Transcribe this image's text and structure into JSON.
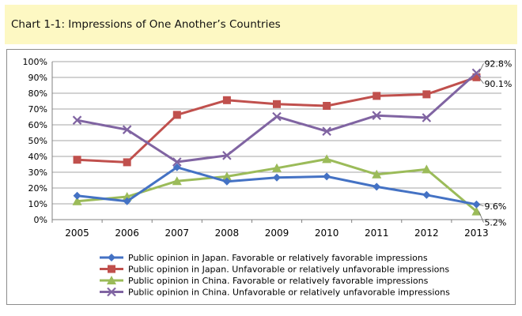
{
  "header": {
    "title": "Chart 1-1: Impressions of One Another’s Countries"
  },
  "chart_data": {
    "type": "line",
    "x": [
      "2005",
      "2006",
      "2007",
      "2008",
      "2009",
      "2010",
      "2011",
      "2012",
      "2013"
    ],
    "ylim": [
      0,
      100
    ],
    "yticks": [
      "0%",
      "10%",
      "20%",
      "30%",
      "40%",
      "50%",
      "60%",
      "70%",
      "80%",
      "90%",
      "100%"
    ],
    "grid": true,
    "legend_position": "bottom",
    "series": [
      {
        "name": "Public opinion in Japan. Favorable or relatively favorable impressions",
        "color": "#4472c4",
        "marker": "diamond",
        "values": [
          15.1,
          11.6,
          33.1,
          24.1,
          26.6,
          27.3,
          20.8,
          15.6,
          9.6
        ]
      },
      {
        "name": "Public opinion in Japan. Unfavorable or relatively unfavorable impressions",
        "color": "#c0504d",
        "marker": "square",
        "values": [
          37.9,
          36.3,
          66.3,
          75.6,
          73.1,
          72.0,
          78.3,
          79.3,
          90.1
        ]
      },
      {
        "name": "Public opinion in China. Favorable or relatively favorable impressions",
        "color": "#9bbb59",
        "marker": "triangle",
        "values": [
          11.6,
          14.5,
          24.4,
          27.3,
          32.6,
          38.3,
          28.6,
          31.8,
          5.2
        ]
      },
      {
        "name": "Public opinion in China. Unfavorable or relatively unfavorable impressions",
        "color": "#8064a2",
        "marker": "x",
        "values": [
          62.9,
          56.9,
          36.5,
          40.6,
          65.2,
          55.9,
          65.9,
          64.5,
          92.8
        ]
      }
    ],
    "annotations": [
      {
        "series": 3,
        "point": 8,
        "text": "92.8%"
      },
      {
        "series": 1,
        "point": 8,
        "text": "90.1%"
      },
      {
        "series": 0,
        "point": 8,
        "text": "9.6%"
      },
      {
        "series": 2,
        "point": 8,
        "text": "5.2%"
      }
    ]
  }
}
